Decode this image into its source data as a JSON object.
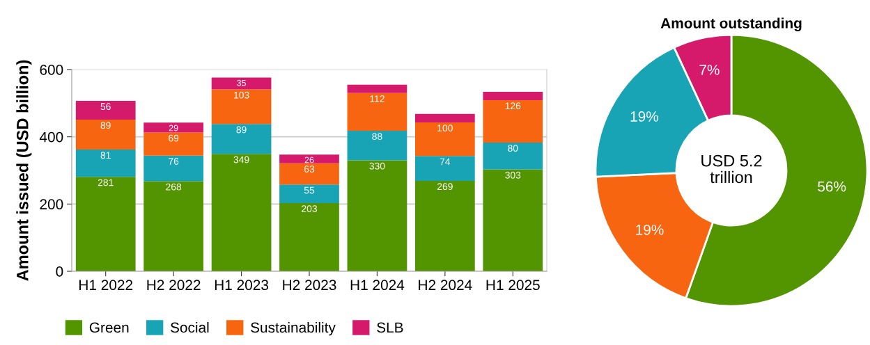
{
  "chart_data": [
    {
      "type": "bar",
      "stacked": true,
      "ylabel": "Amount issued (USD billion)",
      "categories": [
        "H1 2022",
        "H2 2022",
        "H1 2023",
        "H2 2023",
        "H1 2024",
        "H2 2024",
        "H1 2025"
      ],
      "ylim": [
        0,
        600
      ],
      "yticks": [
        0,
        200,
        400,
        600
      ],
      "grid": "y",
      "legend": "bottom",
      "series": [
        {
          "name": "Green",
          "color": "#529500",
          "values": [
            281,
            268,
            349,
            203,
            330,
            269,
            303
          ],
          "value_labels": [
            "281",
            "268",
            "349",
            "203",
            "330",
            "269",
            "303"
          ]
        },
        {
          "name": "Social",
          "color": "#19a4b6",
          "values": [
            81,
            76,
            89,
            55,
            88,
            74,
            80
          ],
          "value_labels": [
            "81",
            "76",
            "89",
            "55",
            "88",
            "74",
            "80"
          ]
        },
        {
          "name": "Sustainability",
          "color": "#f76511",
          "values": [
            89,
            69,
            103,
            63,
            112,
            100,
            126
          ],
          "value_labels": [
            "89",
            "69",
            "103",
            "63",
            "112",
            "100",
            "126"
          ]
        },
        {
          "name": "SLB",
          "color": "#d61a6b",
          "values": [
            56,
            29,
            35,
            26,
            25,
            25,
            25
          ],
          "value_labels": [
            "56",
            "29",
            "35",
            "26",
            null,
            null,
            null
          ]
        }
      ]
    },
    {
      "type": "donut",
      "title": "Amount outstanding",
      "categories": [
        null,
        null,
        null,
        null
      ],
      "values": [
        56,
        19,
        19,
        7
      ],
      "colors": [
        "#529500",
        "#f76511",
        "#19a4b6",
        "#d61a6b"
      ],
      "value_labels": [
        "56%",
        "19%",
        "19%",
        "7%"
      ],
      "annotations": [
        "USD 5.2\ntrillion"
      ]
    }
  ]
}
